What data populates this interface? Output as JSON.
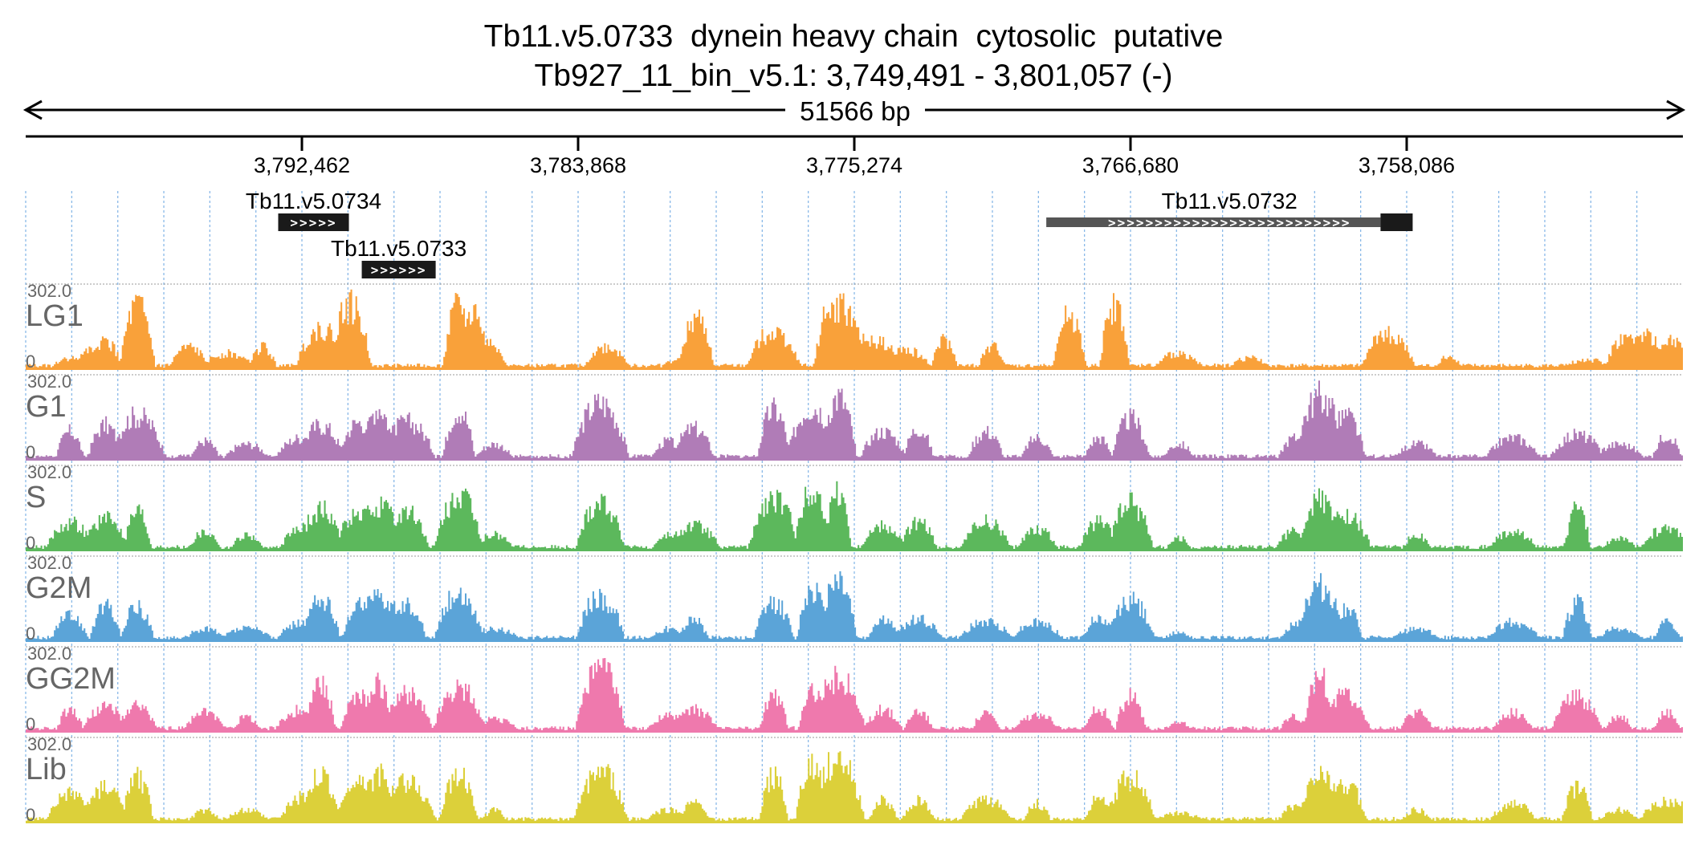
{
  "header": {
    "title": "Tb11.v5.0733  dynein heavy chain  cytosolic  putative",
    "subtitle": "Tb927_11_bin_v5.1: 3,749,491 - 3,801,057 (-)",
    "span_label": "51566 bp"
  },
  "colors": {
    "LG1": "#f9a13a",
    "G1": "#b07cb7",
    "S": "#5cb85c",
    "G2M": "#5ba4d8",
    "GG2M": "#ef79ad",
    "Lib": "#dcd03a",
    "grid": "#8ab9e8",
    "gene_fill": "#1a1a1a",
    "gene_fill_light": "#555555",
    "track_label": "#666666"
  },
  "chart_data": {
    "type": "area",
    "title": "Tb11.v5.0733  dynein heavy chain  cytosolic  putative",
    "region": {
      "chrom": "Tb927_11_bin_v5.1",
      "start": 3749491,
      "end": 3801057,
      "strand": "-"
    },
    "axis": {
      "direction": "reversed",
      "ticks": [
        3792462,
        3783868,
        3775274,
        3766680,
        3758086
      ],
      "tick_labels": [
        "3,792,462",
        "3,783,868",
        "3,775,274",
        "3,766,680",
        "3,758,086"
      ]
    },
    "ylim": [
      0,
      302.0
    ],
    "y_labels": {
      "max": "302.0",
      "min": "0"
    },
    "grid": true,
    "genes": [
      {
        "name": "Tb11.v5.0734",
        "start": 3793200,
        "end": 3791000,
        "row": 0,
        "arrows": ">>>>>",
        "coding_from": null
      },
      {
        "name": "Tb11.v5.0733",
        "start": 3790600,
        "end": 3788300,
        "row": 1,
        "arrows": ">>>>>>",
        "coding_from": null
      },
      {
        "name": "Tb11.v5.0732",
        "start": 3769300,
        "end": 3757900,
        "row": 0,
        "arrows": ">>>>>>>>>>>>>>>>>>>>>>>>>>",
        "coding_from": 3758900
      }
    ],
    "series": [
      {
        "name": "LG1",
        "peaks": [
          [
            3799700,
            0.18
          ],
          [
            3799000,
            0.3
          ],
          [
            3798600,
            0.45
          ],
          [
            3797600,
            1.0
          ],
          [
            3796000,
            0.35
          ],
          [
            3794800,
            0.25
          ],
          [
            3793700,
            0.35
          ],
          [
            3791900,
            0.65
          ],
          [
            3791000,
            1.0
          ],
          [
            3791300,
            0.3
          ],
          [
            3787600,
            1.0
          ],
          [
            3787100,
            0.9
          ],
          [
            3786800,
            0.4
          ],
          [
            3783000,
            0.35
          ],
          [
            3780800,
            0.15
          ],
          [
            3780200,
            0.8
          ],
          [
            3777800,
            0.6
          ],
          [
            3776100,
            0.9
          ],
          [
            3775700,
            1.0
          ],
          [
            3775300,
            0.55
          ],
          [
            3774600,
            0.45
          ],
          [
            3773700,
            0.3
          ],
          [
            3772500,
            0.45
          ],
          [
            3771000,
            0.35
          ],
          [
            3768600,
            0.85
          ],
          [
            3767200,
            1.0
          ],
          [
            3765200,
            0.25
          ],
          [
            3763000,
            0.18
          ],
          [
            3758700,
            0.55
          ],
          [
            3756800,
            0.2
          ],
          [
            3752500,
            0.15
          ],
          [
            3751300,
            0.5
          ],
          [
            3750700,
            0.55
          ],
          [
            3749900,
            0.45
          ]
        ]
      },
      {
        "name": "G1",
        "peaks": [
          [
            3799700,
            0.45
          ],
          [
            3798600,
            0.55
          ],
          [
            3797600,
            0.7
          ],
          [
            3795500,
            0.3
          ],
          [
            3794200,
            0.25
          ],
          [
            3792500,
            0.35
          ],
          [
            3791900,
            0.55
          ],
          [
            3790700,
            0.6
          ],
          [
            3790100,
            0.85
          ],
          [
            3789200,
            0.6
          ],
          [
            3787600,
            0.8
          ],
          [
            3786500,
            0.25
          ],
          [
            3783200,
            0.9
          ],
          [
            3781100,
            0.3
          ],
          [
            3780300,
            0.5
          ],
          [
            3777800,
            0.8
          ],
          [
            3776600,
            0.85
          ],
          [
            3775800,
            1.0
          ],
          [
            3774400,
            0.45
          ],
          [
            3773300,
            0.5
          ],
          [
            3771200,
            0.45
          ],
          [
            3769600,
            0.35
          ],
          [
            3767700,
            0.35
          ],
          [
            3766700,
            0.65
          ],
          [
            3765200,
            0.25
          ],
          [
            3761600,
            0.35
          ],
          [
            3760800,
            1.0
          ],
          [
            3760000,
            0.7
          ],
          [
            3757800,
            0.25
          ],
          [
            3754800,
            0.35
          ],
          [
            3752800,
            0.4
          ],
          [
            3751500,
            0.25
          ],
          [
            3750000,
            0.4
          ]
        ]
      },
      {
        "name": "S",
        "peaks": [
          [
            3799700,
            0.45
          ],
          [
            3798600,
            0.5
          ],
          [
            3797600,
            0.65
          ],
          [
            3795500,
            0.3
          ],
          [
            3794200,
            0.25
          ],
          [
            3792500,
            0.35
          ],
          [
            3791900,
            0.65
          ],
          [
            3790700,
            0.55
          ],
          [
            3790100,
            0.7
          ],
          [
            3789200,
            0.6
          ],
          [
            3787600,
            0.85
          ],
          [
            3786500,
            0.25
          ],
          [
            3783200,
            0.8
          ],
          [
            3781100,
            0.25
          ],
          [
            3780300,
            0.4
          ],
          [
            3777800,
            0.8
          ],
          [
            3776600,
            0.95
          ],
          [
            3775800,
            1.0
          ],
          [
            3774400,
            0.4
          ],
          [
            3773300,
            0.45
          ],
          [
            3771200,
            0.45
          ],
          [
            3769600,
            0.35
          ],
          [
            3767700,
            0.45
          ],
          [
            3766700,
            0.75
          ],
          [
            3765200,
            0.2
          ],
          [
            3761600,
            0.3
          ],
          [
            3760800,
            0.8
          ],
          [
            3760000,
            0.55
          ],
          [
            3757800,
            0.25
          ],
          [
            3754800,
            0.3
          ],
          [
            3752800,
            0.65
          ],
          [
            3751500,
            0.2
          ],
          [
            3750000,
            0.35
          ]
        ]
      },
      {
        "name": "G2M",
        "peaks": [
          [
            3799700,
            0.4
          ],
          [
            3798600,
            0.55
          ],
          [
            3797600,
            0.55
          ],
          [
            3795500,
            0.2
          ],
          [
            3794200,
            0.2
          ],
          [
            3792500,
            0.3
          ],
          [
            3791900,
            0.65
          ],
          [
            3790700,
            0.55
          ],
          [
            3790100,
            0.75
          ],
          [
            3789200,
            0.6
          ],
          [
            3787600,
            0.75
          ],
          [
            3786500,
            0.2
          ],
          [
            3783200,
            0.7
          ],
          [
            3781100,
            0.2
          ],
          [
            3780300,
            0.35
          ],
          [
            3777800,
            0.6
          ],
          [
            3776600,
            0.85
          ],
          [
            3775800,
            1.0
          ],
          [
            3774400,
            0.35
          ],
          [
            3773300,
            0.35
          ],
          [
            3771200,
            0.3
          ],
          [
            3769600,
            0.3
          ],
          [
            3767700,
            0.35
          ],
          [
            3766700,
            0.65
          ],
          [
            3765200,
            0.15
          ],
          [
            3761600,
            0.25
          ],
          [
            3760800,
            0.85
          ],
          [
            3760000,
            0.55
          ],
          [
            3757800,
            0.2
          ],
          [
            3754800,
            0.3
          ],
          [
            3752800,
            0.6
          ],
          [
            3751500,
            0.2
          ],
          [
            3750000,
            0.3
          ]
        ]
      },
      {
        "name": "GG2M",
        "peaks": [
          [
            3799700,
            0.35
          ],
          [
            3798600,
            0.4
          ],
          [
            3797600,
            0.4
          ],
          [
            3795500,
            0.3
          ],
          [
            3794200,
            0.25
          ],
          [
            3792500,
            0.35
          ],
          [
            3791900,
            0.8
          ],
          [
            3790700,
            0.55
          ],
          [
            3790100,
            0.75
          ],
          [
            3789200,
            0.6
          ],
          [
            3787600,
            0.7
          ],
          [
            3786500,
            0.2
          ],
          [
            3783200,
            1.0
          ],
          [
            3781100,
            0.25
          ],
          [
            3780300,
            0.35
          ],
          [
            3777800,
            0.6
          ],
          [
            3776600,
            0.7
          ],
          [
            3775800,
            0.85
          ],
          [
            3774400,
            0.35
          ],
          [
            3773300,
            0.35
          ],
          [
            3771200,
            0.3
          ],
          [
            3769600,
            0.25
          ],
          [
            3767700,
            0.35
          ],
          [
            3766700,
            0.55
          ],
          [
            3765200,
            0.15
          ],
          [
            3761600,
            0.25
          ],
          [
            3760800,
            0.85
          ],
          [
            3760000,
            0.6
          ],
          [
            3757800,
            0.3
          ],
          [
            3754800,
            0.3
          ],
          [
            3752800,
            0.55
          ],
          [
            3751500,
            0.25
          ],
          [
            3750000,
            0.3
          ]
        ]
      },
      {
        "name": "Lib",
        "peaks": [
          [
            3799700,
            0.45
          ],
          [
            3798600,
            0.55
          ],
          [
            3797600,
            0.7
          ],
          [
            3795500,
            0.2
          ],
          [
            3794200,
            0.2
          ],
          [
            3792500,
            0.4
          ],
          [
            3791900,
            0.75
          ],
          [
            3790700,
            0.6
          ],
          [
            3790100,
            0.75
          ],
          [
            3789200,
            0.65
          ],
          [
            3787600,
            0.75
          ],
          [
            3786500,
            0.2
          ],
          [
            3783200,
            0.8
          ],
          [
            3781100,
            0.2
          ],
          [
            3780300,
            0.3
          ],
          [
            3777800,
            0.75
          ],
          [
            3776600,
            0.9
          ],
          [
            3775800,
            1.0
          ],
          [
            3774400,
            0.35
          ],
          [
            3773300,
            0.35
          ],
          [
            3771200,
            0.35
          ],
          [
            3769600,
            0.3
          ],
          [
            3767700,
            0.4
          ],
          [
            3766700,
            0.7
          ],
          [
            3765200,
            0.15
          ],
          [
            3761600,
            0.25
          ],
          [
            3760800,
            0.8
          ],
          [
            3760000,
            0.6
          ],
          [
            3757800,
            0.2
          ],
          [
            3754800,
            0.3
          ],
          [
            3752800,
            0.55
          ],
          [
            3751500,
            0.2
          ],
          [
            3750000,
            0.35
          ]
        ]
      }
    ]
  }
}
